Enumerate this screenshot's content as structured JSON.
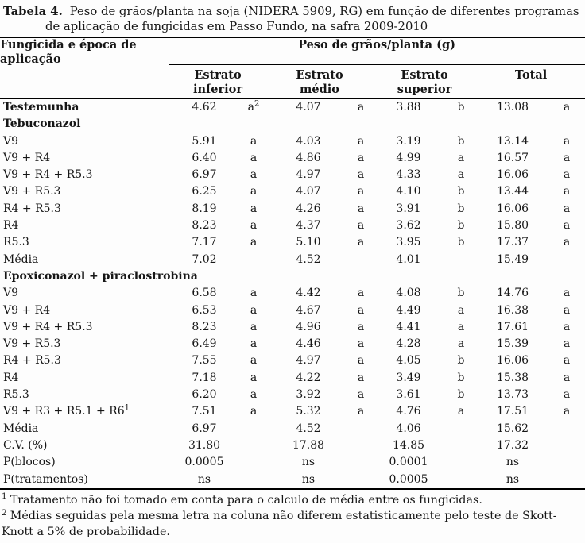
{
  "caption": {
    "label": "Tabela 4.",
    "text": "Peso de grãos/planta na soja (NIDERA 5909, RG) em função de diferentes programas de aplicação de fungicidas em Passo Fundo, na safra 2009-2010"
  },
  "table": {
    "col1_header": "Fungicida e época de aplicação",
    "group_header": "Peso de grãos/planta (g)",
    "subheaders": [
      "Estrato\ninferior",
      "Estrato\nmédio",
      "Estrato\nsuperior",
      "Total"
    ],
    "rows": [
      {
        "name": "Testemunha",
        "bold": true,
        "cells": [
          "4.62",
          "a^2",
          "4.07",
          "a",
          "3.88",
          "b",
          "13.08",
          "a"
        ]
      },
      {
        "name": "Tebuconazol",
        "bold": true,
        "cells": [
          "",
          "",
          "",
          "",
          "",
          "",
          "",
          ""
        ]
      },
      {
        "name": "V9",
        "bold": false,
        "cells": [
          "5.91",
          "a",
          "4.03",
          "a",
          "3.19",
          "b",
          "13.14",
          "a"
        ]
      },
      {
        "name": "V9 + R4",
        "bold": false,
        "cells": [
          "6.40",
          "a",
          "4.86",
          "a",
          "4.99",
          "a",
          "16.57",
          "a"
        ]
      },
      {
        "name": "V9 + R4 + R5.3",
        "bold": false,
        "cells": [
          "6.97",
          "a",
          "4.97",
          "a",
          "4.33",
          "a",
          "16.06",
          "a"
        ]
      },
      {
        "name": "V9 + R5.3",
        "bold": false,
        "cells": [
          "6.25",
          "a",
          "4.07",
          "a",
          "4.10",
          "b",
          "13.44",
          "a"
        ]
      },
      {
        "name": "R4 + R5.3",
        "bold": false,
        "cells": [
          "8.19",
          "a",
          "4.26",
          "a",
          "3.91",
          "b",
          "16.06",
          "a"
        ]
      },
      {
        "name": "R4",
        "bold": false,
        "cells": [
          "8.23",
          "a",
          "4.37",
          "a",
          "3.62",
          "b",
          "15.80",
          "a"
        ]
      },
      {
        "name": "R5.3",
        "bold": false,
        "cells": [
          "7.17",
          "a",
          "5.10",
          "a",
          "3.95",
          "b",
          "17.37",
          "a"
        ]
      },
      {
        "name": "Média",
        "bold": false,
        "cells": [
          "7.02",
          "",
          "4.52",
          "",
          "4.01",
          "",
          "15.49",
          ""
        ]
      },
      {
        "name": "Epoxiconazol + piraclostrobina",
        "bold": true,
        "cells": [
          "",
          "",
          "",
          "",
          "",
          "",
          "",
          ""
        ]
      },
      {
        "name": "V9",
        "bold": false,
        "cells": [
          "6.58",
          "a",
          "4.42",
          "a",
          "4.08",
          "b",
          "14.76",
          "a"
        ]
      },
      {
        "name": "V9 + R4",
        "bold": false,
        "cells": [
          "6.53",
          "a",
          "4.67",
          "a",
          "4.49",
          "a",
          "16.38",
          "a"
        ]
      },
      {
        "name": "V9 + R4 + R5.3",
        "bold": false,
        "cells": [
          "8.23",
          "a",
          "4.96",
          "a",
          "4.41",
          "a",
          "17.61",
          "a"
        ]
      },
      {
        "name": "V9 + R5.3",
        "bold": false,
        "cells": [
          "6.49",
          "a",
          "4.46",
          "a",
          "4.28",
          "a",
          "15.39",
          "a"
        ]
      },
      {
        "name": "R4 + R5.3",
        "bold": false,
        "cells": [
          "7.55",
          "a",
          "4.97",
          "a",
          "4.05",
          "b",
          "16.06",
          "a"
        ]
      },
      {
        "name": "R4",
        "bold": false,
        "cells": [
          "7.18",
          "a",
          "4.22",
          "a",
          "3.49",
          "b",
          "15.38",
          "a"
        ]
      },
      {
        "name": "R5.3",
        "bold": false,
        "cells": [
          "6.20",
          "a",
          "3.92",
          "a",
          "3.61",
          "b",
          "13.73",
          "a"
        ]
      },
      {
        "name": "V9 + R3 + R5.1 + R6^1",
        "bold": false,
        "cells": [
          "7.51",
          "a",
          "5.32",
          "a",
          "4.76",
          "a",
          "17.51",
          "a"
        ]
      },
      {
        "name": "Média",
        "bold": false,
        "cells": [
          "6.97",
          "",
          "4.52",
          "",
          "4.06",
          "",
          "15.62",
          ""
        ]
      },
      {
        "name": "C.V. (%)",
        "bold": false,
        "cells": [
          "31.80",
          "",
          "17.88",
          "",
          "14.85",
          "",
          "17.32",
          ""
        ]
      },
      {
        "name": "P(blocos)",
        "bold": false,
        "cells": [
          "0.0005",
          "",
          "ns",
          "",
          "0.0001",
          "",
          "ns",
          ""
        ]
      },
      {
        "name": "P(tratamentos)",
        "bold": false,
        "cells": [
          "ns",
          "",
          "ns",
          "",
          "0.0005",
          "",
          "ns",
          ""
        ]
      }
    ]
  },
  "footnotes": [
    {
      "marker": "1",
      "text": "Tratamento não foi tomado em conta para o calculo de média entre os fungicidas."
    },
    {
      "marker": "2",
      "text": "Médias seguidas pela mesma letra na coluna não diferem estatisticamente pelo teste de Skott-Knott a 5% de probabilidade."
    }
  ]
}
